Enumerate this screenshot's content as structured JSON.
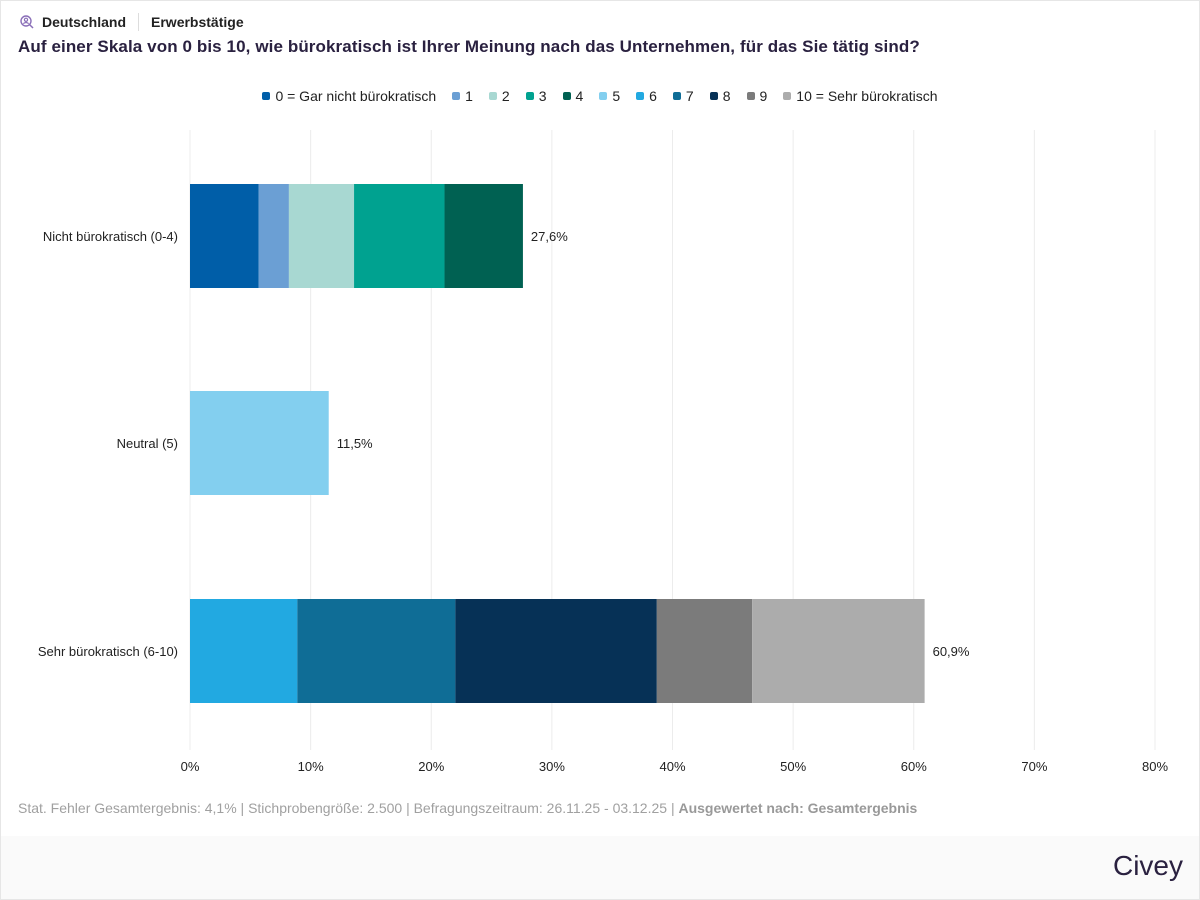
{
  "header": {
    "icon": "search-user-icon",
    "country": "Deutschland",
    "population": "Erwerbstätige",
    "title": "Auf einer Skala von 0 bis 10, wie bürokratisch ist Ihrer Meinung nach das Unternehmen, für das Sie tätig sind?"
  },
  "footer": {
    "note": "Stat. Fehler Gesamtergebnis: 4,1% | Stichprobengröße: 2.500 | Befragungszeitraum: 26.11.25 - 03.12.25 | ",
    "note_bold": "Ausgewertet nach: Gesamtergebnis",
    "brand": "Civey"
  },
  "chart_data": {
    "type": "bar",
    "orientation": "horizontal",
    "stacked": true,
    "title": "Auf einer Skala von 0 bis 10, wie bürokratisch ist Ihrer Meinung nach das Unternehmen, für das Sie tätig sind?",
    "xlabel": "",
    "ylabel": "",
    "xlim": [
      0,
      80
    ],
    "x_ticks": [
      "0%",
      "10%",
      "20%",
      "30%",
      "40%",
      "50%",
      "60%",
      "70%",
      "80%"
    ],
    "grid": true,
    "legend_position": "top-center",
    "categories": [
      "Nicht bürokratisch (0-4)",
      "Neutral (5)",
      "Sehr bürokratisch (6-10)"
    ],
    "totals": [
      27.6,
      11.5,
      60.9
    ],
    "total_labels": [
      "27,6%",
      "11,5%",
      "60,9%"
    ],
    "series": [
      {
        "name": "0 = Gar nicht bürokratisch",
        "color": "#005ea8",
        "values": [
          5.7,
          0,
          0
        ]
      },
      {
        "name": "1",
        "color": "#6b9fd4",
        "values": [
          2.5,
          0,
          0
        ]
      },
      {
        "name": "2",
        "color": "#a8d8d2",
        "values": [
          5.4,
          0,
          0
        ]
      },
      {
        "name": "3",
        "color": "#00a290",
        "values": [
          7.5,
          0,
          0
        ]
      },
      {
        "name": "4",
        "color": "#006152",
        "values": [
          6.5,
          0,
          0
        ]
      },
      {
        "name": "5",
        "color": "#83cfef",
        "values": [
          0,
          11.5,
          0
        ]
      },
      {
        "name": "6",
        "color": "#22a9e1",
        "values": [
          0,
          0,
          8.9
        ]
      },
      {
        "name": "7",
        "color": "#0f6d96",
        "values": [
          0,
          0,
          13.1
        ]
      },
      {
        "name": "8",
        "color": "#063156",
        "values": [
          0,
          0,
          16.7
        ]
      },
      {
        "name": "9",
        "color": "#7b7b7b",
        "values": [
          0,
          0,
          7.9
        ]
      },
      {
        "name": "10 = Sehr bürokratisch",
        "color": "#acacac",
        "values": [
          0,
          0,
          14.3
        ]
      }
    ]
  }
}
